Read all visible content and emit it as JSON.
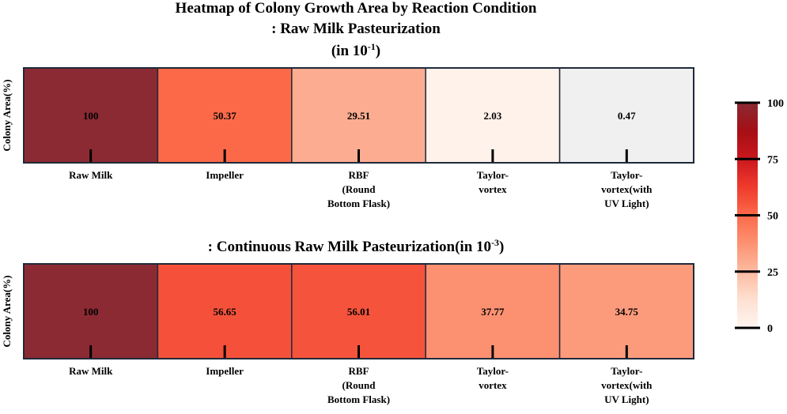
{
  "chart_data": {
    "type": "heatmap",
    "title_line1": "Heatmap of Colony Growth Area by Reaction Condition",
    "title_line2": ": Raw Milk Pasteurization",
    "title_line3_base": "(in 10",
    "title_line3_exp": "-1",
    "title_line3_end": ")",
    "colorbar": {
      "min": 0,
      "max": 100,
      "ticks": [
        "0",
        "25",
        "50",
        "75",
        "100"
      ],
      "colormap": "Reds"
    },
    "panels": [
      {
        "subtitle_base": "",
        "subtitle_exp": "",
        "subtitle_end": "",
        "ylabel": "Colony Area(%)",
        "categories": [
          [
            "Raw Milk"
          ],
          [
            "Impeller"
          ],
          [
            "RBF",
            "(Round",
            "Bottom Flask)"
          ],
          [
            "Taylor-",
            "vortex"
          ],
          [
            "Taylor-",
            "vortex(with",
            "UV Light)"
          ]
        ],
        "values": [
          100,
          50.37,
          29.51,
          2.03,
          0.47
        ],
        "labels": [
          "100",
          "50.37",
          "29.51",
          "2.03",
          "0.47"
        ]
      },
      {
        "subtitle_base": ": Continuous Raw Milk Pasteurization(in 10",
        "subtitle_exp": "-3",
        "subtitle_end": ")",
        "ylabel": "Colony Area(%)",
        "categories": [
          [
            "Raw Milk"
          ],
          [
            "Impeller"
          ],
          [
            "RBF",
            "(Round",
            "Bottom Flask)"
          ],
          [
            "Taylor-",
            "vortex"
          ],
          [
            "Taylor-",
            "vortex(with",
            "UV Light)"
          ]
        ],
        "values": [
          100,
          56.65,
          56.01,
          37.77,
          34.75
        ],
        "labels": [
          "100",
          "56.65",
          "56.01",
          "37.77",
          "34.75"
        ]
      }
    ]
  }
}
